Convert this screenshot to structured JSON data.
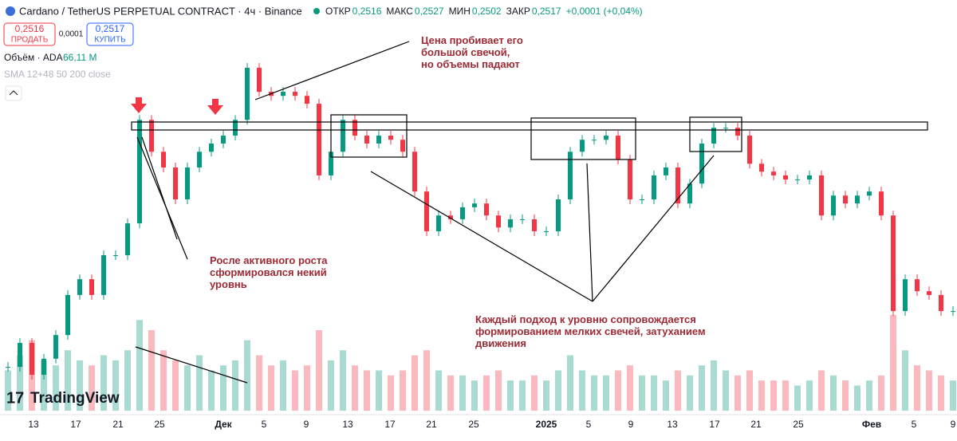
{
  "header": {
    "title": "Cardano / TetherUS PERPETUAL CONTRACT · 4ч · Binance",
    "ohlc": [
      [
        "ОТКР",
        "0,2516"
      ],
      [
        "МАКС",
        "0,2527"
      ],
      [
        "МИН",
        "0,2502"
      ],
      [
        "ЗАКР",
        "0,2517"
      ]
    ],
    "change": "+0,0001 (+0,04%)"
  },
  "trade": {
    "sell_price": "0,2516",
    "sell_label": "ПРОДАТЬ",
    "spread": "0,0001",
    "buy_price": "0,2517",
    "buy_label": "КУПИТЬ"
  },
  "indicators": {
    "volume_label": "Объём · ADA",
    "volume_value": "66,11 M",
    "sma": "SMA 12+48 50 200 close"
  },
  "annotations": [
    "Цена пробивает его большой свечой, но объемы падают",
    "Росле активного роста сформировался некий уровнь",
    "Каждый подход к уровню сопровождается формированием мелких свечей, затуханием движения"
  ],
  "logo": "TradingView",
  "x_labels": [
    "13",
    "17",
    "21",
    "25",
    "Дек",
    "5",
    "9",
    "13",
    "17",
    "21",
    "25",
    "2025",
    "5",
    "9",
    "13",
    "17",
    "21",
    "25",
    "Фев",
    "5",
    "9"
  ],
  "closes": [
    0.424,
    0.494,
    0.401,
    0.448,
    0.517,
    0.634,
    0.68,
    0.634,
    0.75,
    0.75,
    0.843,
    1.145,
    1.052,
    1.006,
    0.913,
    1.006,
    1.052,
    1.076,
    1.099,
    1.145,
    1.297,
    1.227,
    1.215,
    1.227,
    1.215,
    1.192,
    0.983,
    1.052,
    1.145,
    1.099,
    1.076,
    1.099,
    1.087,
    1.052,
    0.936,
    0.82,
    0.866,
    0.855,
    0.89,
    0.901,
    0.866,
    0.831,
    0.855,
    0.855,
    0.82,
    0.82,
    0.913,
    1.052,
    1.087,
    1.087,
    1.099,
    1.029,
    0.913,
    0.913,
    0.983,
    1.006,
    0.901,
    0.959,
    1.076,
    1.122,
    1.122,
    1.099,
    1.017,
    0.994,
    0.983,
    0.971,
    0.971,
    0.983,
    0.866,
    0.924,
    0.901,
    0.924,
    0.936,
    0.866,
    0.587,
    0.68,
    0.645,
    0.634,
    0.587,
    0.587
  ],
  "volumes": [
    40,
    55,
    70,
    50,
    45,
    60,
    50,
    45,
    55,
    50,
    60,
    90,
    80,
    60,
    50,
    45,
    55,
    40,
    45,
    50,
    70,
    55,
    45,
    50,
    40,
    45,
    80,
    50,
    60,
    45,
    40,
    40,
    35,
    40,
    55,
    60,
    40,
    35,
    35,
    30,
    35,
    40,
    30,
    30,
    35,
    30,
    40,
    55,
    40,
    35,
    35,
    40,
    45,
    35,
    35,
    30,
    40,
    35,
    45,
    50,
    40,
    35,
    40,
    30,
    30,
    30,
    25,
    30,
    40,
    35,
    30,
    25,
    30,
    35,
    95,
    60,
    45,
    40,
    35,
    30
  ]
}
